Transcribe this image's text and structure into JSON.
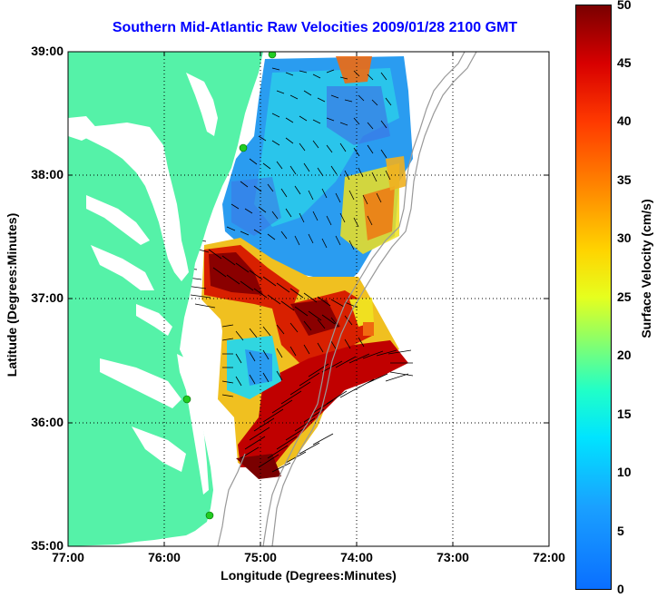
{
  "title": "Southern Mid-Atlantic Raw Velocities 2009/01/28 2100 GMT",
  "xlabel": "Longitude (Degrees:Minutes)",
  "ylabel": "Latitude (Degrees:Minutes)",
  "colorbar": {
    "label": "Surface Velocity (cm/s)",
    "ticks": [
      "0",
      "5",
      "10",
      "15",
      "20",
      "25",
      "30",
      "35",
      "40",
      "45",
      "50"
    ],
    "range": [
      0,
      50
    ],
    "colormap": "jet"
  },
  "map": {
    "lon_ticks": [
      "77:00",
      "76:00",
      "75:00",
      "74:00",
      "73:00",
      "72:00"
    ],
    "lat_ticks": [
      "39:00",
      "38:00",
      "37:00",
      "36:00",
      "35:00"
    ],
    "lon_range": [
      -77,
      -72
    ],
    "lat_range": [
      35,
      39
    ],
    "grid": "dotted",
    "land_color": "#55f2a8",
    "bathymetry_color": "#999999"
  }
}
